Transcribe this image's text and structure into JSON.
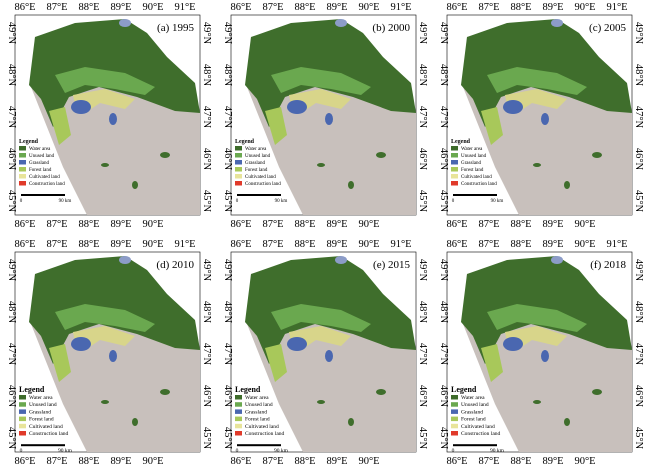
{
  "panels": [
    {
      "label": "(a) 1995"
    },
    {
      "label": "(b) 2000"
    },
    {
      "label": "(c) 2005"
    },
    {
      "label": "(d) 2010"
    },
    {
      "label": "(e) 2015"
    },
    {
      "label": "(f) 2018"
    }
  ],
  "top_lon_labels": [
    "86°E",
    "87°E",
    "88°E",
    "89°E",
    "90°E",
    "91°E"
  ],
  "bottom_lon_labels": [
    "86°E",
    "87°E",
    "88°E",
    "89°E",
    "90°E"
  ],
  "lat_labels": [
    "49°N",
    "48°N",
    "47°N",
    "46°N",
    "45°N"
  ],
  "legend": {
    "title": "Legend",
    "items": [
      {
        "name": "Water area",
        "color": "#3d6b2a"
      },
      {
        "name": "Unused land",
        "color": "#6aa84f"
      },
      {
        "name": "Grassland",
        "color": "#4a67b0"
      },
      {
        "name": "Forest land",
        "color": "#a8c85a"
      },
      {
        "name": "Cultivated land",
        "color": "#e8e49a"
      },
      {
        "name": "Construction land",
        "color": "#e03a2a"
      }
    ],
    "scale": [
      "0",
      "90 km"
    ]
  }
}
